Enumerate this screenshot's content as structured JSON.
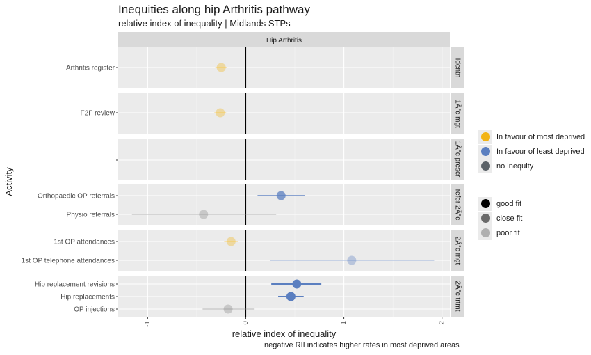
{
  "header": {
    "title": "Inequities along hip Arthritis pathway",
    "subtitle": "relative index of inequality | Midlands STPs",
    "caption": "negative RII indicates higher rates in most deprived areas"
  },
  "legend_equity": {
    "items": [
      {
        "label": "In favour of most deprived",
        "color": "#f2b416"
      },
      {
        "label": "In favour of least deprived",
        "color": "#5b7fc0"
      },
      {
        "label": "no inequity",
        "color": "#5b6268"
      }
    ]
  },
  "legend_fit": {
    "items": [
      {
        "label": "good fit"
      },
      {
        "label": "close fit"
      },
      {
        "label": "poor fit"
      }
    ]
  },
  "chart_data": {
    "type": "scatter",
    "facet_title": "Hip Arthritis",
    "xlabel": "relative index of inequality",
    "ylabel": "Activity",
    "xlim": [
      -1.3,
      2.08
    ],
    "xticks": [
      -1,
      0,
      1,
      2
    ],
    "xtick_labels": [
      "-1",
      "0",
      "1",
      "2"
    ],
    "grid": true,
    "vline_at": 0,
    "colors": {
      "most": "#f2b416",
      "least": "#5b7fc0",
      "none": "#888888"
    },
    "panels": [
      {
        "strip": "Identn",
        "rows": [
          {
            "label": "Arthritis register",
            "x": -0.25,
            "lo": -0.31,
            "hi": -0.19,
            "equity": "most",
            "fit": "poor"
          }
        ]
      },
      {
        "strip": "1Â°c mgt",
        "rows": [
          {
            "label": "F2F review",
            "x": -0.26,
            "lo": -0.32,
            "hi": -0.2,
            "equity": "most",
            "fit": "poor"
          }
        ]
      },
      {
        "strip": "1Â°c prescr",
        "rows": [
          {
            "label": "",
            "x": null,
            "lo": null,
            "hi": null,
            "equity": "none",
            "fit": "poor"
          }
        ]
      },
      {
        "strip": "refer 2Â°c",
        "rows": [
          {
            "label": "Orthopaedic OP referrals",
            "x": 0.36,
            "lo": 0.12,
            "hi": 0.6,
            "equity": "least",
            "fit": "close"
          },
          {
            "label": "Physio referrals",
            "x": -0.43,
            "lo": -1.16,
            "hi": 0.31,
            "equity": "none",
            "fit": "poor"
          }
        ]
      },
      {
        "strip": "2Â°c mgt",
        "rows": [
          {
            "label": "1st OP attendances",
            "x": -0.15,
            "lo": -0.22,
            "hi": -0.08,
            "equity": "most",
            "fit": "poor"
          },
          {
            "label": "1st OP telephone attendances",
            "x": 1.08,
            "lo": 0.25,
            "hi": 1.92,
            "equity": "least",
            "fit": "poor"
          }
        ]
      },
      {
        "strip": "2Â°c trtmt",
        "rows": [
          {
            "label": "Hip replacement revisions",
            "x": 0.52,
            "lo": 0.26,
            "hi": 0.77,
            "equity": "least",
            "fit": "good"
          },
          {
            "label": "Hip replacements",
            "x": 0.46,
            "lo": 0.33,
            "hi": 0.59,
            "equity": "least",
            "fit": "good"
          },
          {
            "label": "OP injections",
            "x": -0.18,
            "lo": -0.44,
            "hi": 0.09,
            "equity": "none",
            "fit": "poor"
          }
        ]
      }
    ]
  }
}
